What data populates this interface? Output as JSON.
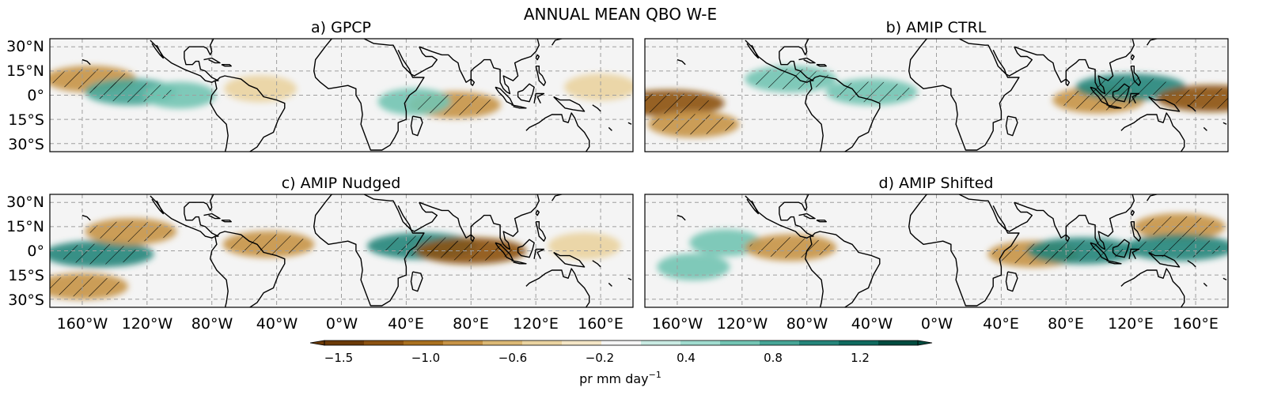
{
  "figure": {
    "title": "ANNUAL MEAN QBO W-E",
    "lon_ticks": [
      "160°W",
      "120°W",
      "80°W",
      "40°W",
      "0°W",
      "40°E",
      "80°E",
      "120°E",
      "160°E"
    ],
    "lat_ticks": [
      "30°N",
      "15°N",
      "0°",
      "15°S",
      "30°S"
    ],
    "panels": [
      {
        "id": "a",
        "title": "a) GPCP"
      },
      {
        "id": "b",
        "title": "b) AMIP CTRL"
      },
      {
        "id": "c",
        "title": "c) AMIP Nudged"
      },
      {
        "id": "d",
        "title": "d) AMIP Shifted"
      }
    ],
    "colorbar": {
      "ticks": [
        "−1.5",
        "−1.0",
        "−0.6",
        "−0.2",
        "0.4",
        "0.8",
        "1.2"
      ],
      "label_base": "pr mm day",
      "label_exp": "−1",
      "colors": [
        "#6b3a07",
        "#8c5212",
        "#a9701f",
        "#c69346",
        "#dbb874",
        "#ead3a0",
        "#f4e6c6",
        "#f5f5f5",
        "#c9ebe3",
        "#a0dccf",
        "#72c4b3",
        "#46a596",
        "#24857a",
        "#0f6a5f",
        "#014b3f"
      ]
    }
  },
  "chart_data": {
    "type": "heatmap",
    "title": "ANNUAL MEAN QBO W-E",
    "variable": "pr",
    "units": "mm day-1",
    "colormap": "brown-to-teal diverging",
    "x_axis": {
      "ticks": [
        "160°W",
        "120°W",
        "80°W",
        "40°W",
        "0°W",
        "40°E",
        "80°E",
        "120°E",
        "160°E"
      ],
      "range": [
        -180,
        180
      ]
    },
    "y_axis": {
      "ticks": [
        "30°N",
        "15°N",
        "0°",
        "15°S",
        "30°S"
      ],
      "range": [
        -35,
        35
      ]
    },
    "colorbar_ticks": [
      -1.5,
      -1.0,
      -0.6,
      -0.2,
      0.4,
      0.8,
      1.2
    ],
    "panels": [
      {
        "title": "a) GPCP",
        "anomalies": [
          {
            "lon": -155,
            "lat": 10,
            "value": -1.0
          },
          {
            "lon": -130,
            "lat": 2,
            "value": 1.0
          },
          {
            "lon": -100,
            "lat": 0,
            "value": 0.6
          },
          {
            "lon": -50,
            "lat": 4,
            "value": -0.6
          },
          {
            "lon": 70,
            "lat": -6,
            "value": -1.0
          },
          {
            "lon": 45,
            "lat": -4,
            "value": 0.6
          },
          {
            "lon": 160,
            "lat": 5,
            "value": -0.6
          }
        ]
      },
      {
        "title": "b) AMIP CTRL",
        "anomalies": [
          {
            "lon": -165,
            "lat": -5,
            "value": -1.5
          },
          {
            "lon": -150,
            "lat": -18,
            "value": -1.0
          },
          {
            "lon": -90,
            "lat": 10,
            "value": 0.8
          },
          {
            "lon": -40,
            "lat": 2,
            "value": 0.8
          },
          {
            "lon": 100,
            "lat": -3,
            "value": -1.0
          },
          {
            "lon": 120,
            "lat": 5,
            "value": 1.2
          },
          {
            "lon": 170,
            "lat": -2,
            "value": -1.5
          }
        ]
      },
      {
        "title": "c) AMIP Nudged",
        "anomalies": [
          {
            "lon": -150,
            "lat": -2,
            "value": 1.2
          },
          {
            "lon": -130,
            "lat": 12,
            "value": -1.0
          },
          {
            "lon": -160,
            "lat": -22,
            "value": -1.0
          },
          {
            "lon": -45,
            "lat": 4,
            "value": -1.0
          },
          {
            "lon": 50,
            "lat": 3,
            "value": 1.2
          },
          {
            "lon": 80,
            "lat": 0,
            "value": -1.5
          },
          {
            "lon": 150,
            "lat": 3,
            "value": -0.6
          }
        ]
      },
      {
        "title": "d) AMIP Shifted",
        "anomalies": [
          {
            "lon": -130,
            "lat": 5,
            "value": 0.6
          },
          {
            "lon": -90,
            "lat": 2,
            "value": -1.0
          },
          {
            "lon": -150,
            "lat": -10,
            "value": 0.6
          },
          {
            "lon": 60,
            "lat": -2,
            "value": -1.0
          },
          {
            "lon": 90,
            "lat": 0,
            "value": 1.2
          },
          {
            "lon": 150,
            "lat": 15,
            "value": -1.0
          },
          {
            "lon": 150,
            "lat": 2,
            "value": 1.2
          }
        ]
      }
    ]
  }
}
